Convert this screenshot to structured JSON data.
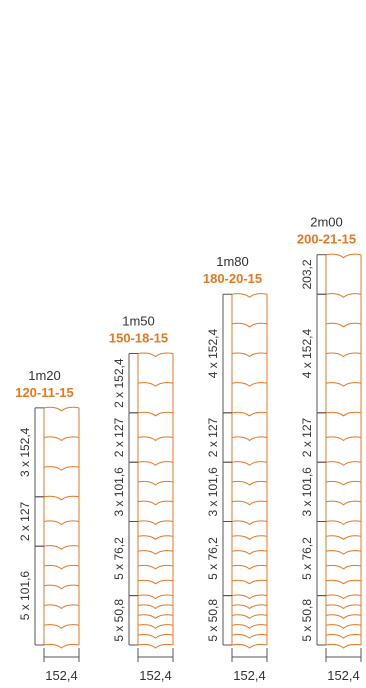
{
  "colors": {
    "accent": "#e87722",
    "line": "#555555",
    "text": "#333333"
  },
  "columns": [
    {
      "size": "1m20",
      "code": "120-11-15",
      "width_label": "152,4",
      "groups": [
        {
          "label": "3 x 152,4",
          "count": 3,
          "pitch": 152.4
        },
        {
          "label": "2 x 127",
          "count": 2,
          "pitch": 127
        },
        {
          "label": "5 x 101,6",
          "count": 5,
          "pitch": 101.6
        }
      ]
    },
    {
      "size": "1m50",
      "code": "150-18-15",
      "width_label": "152,4",
      "groups": [
        {
          "label": "2 x 152,4",
          "count": 2,
          "pitch": 152.4
        },
        {
          "label": "2 x 127",
          "count": 2,
          "pitch": 127
        },
        {
          "label": "3 x 101,6",
          "count": 3,
          "pitch": 101.6
        },
        {
          "label": "5 x 76,2",
          "count": 5,
          "pitch": 76.2
        },
        {
          "label": "5 x 50,8",
          "count": 5,
          "pitch": 50.8
        }
      ]
    },
    {
      "size": "1m80",
      "code": "180-20-15",
      "width_label": "152,4",
      "groups": [
        {
          "label": "4 x 152,4",
          "count": 4,
          "pitch": 152.4
        },
        {
          "label": "2 x 127",
          "count": 2,
          "pitch": 127
        },
        {
          "label": "3 x 101,6",
          "count": 3,
          "pitch": 101.6
        },
        {
          "label": "5 x 76,2",
          "count": 5,
          "pitch": 76.2
        },
        {
          "label": "5 x 50,8",
          "count": 5,
          "pitch": 50.8
        }
      ]
    },
    {
      "size": "2m00",
      "code": "200-21-15",
      "width_label": "152,4",
      "groups": [
        {
          "label": "203,2",
          "count": 1,
          "pitch": 203.2
        },
        {
          "label": "4 x 152,4",
          "count": 4,
          "pitch": 152.4
        },
        {
          "label": "2 x 127",
          "count": 2,
          "pitch": 127
        },
        {
          "label": "3 x 101,6",
          "count": 3,
          "pitch": 101.6
        },
        {
          "label": "5 x 76,2",
          "count": 5,
          "pitch": 76.2
        },
        {
          "label": "5 x 50,8",
          "count": 5,
          "pitch": 50.8
        }
      ]
    }
  ]
}
